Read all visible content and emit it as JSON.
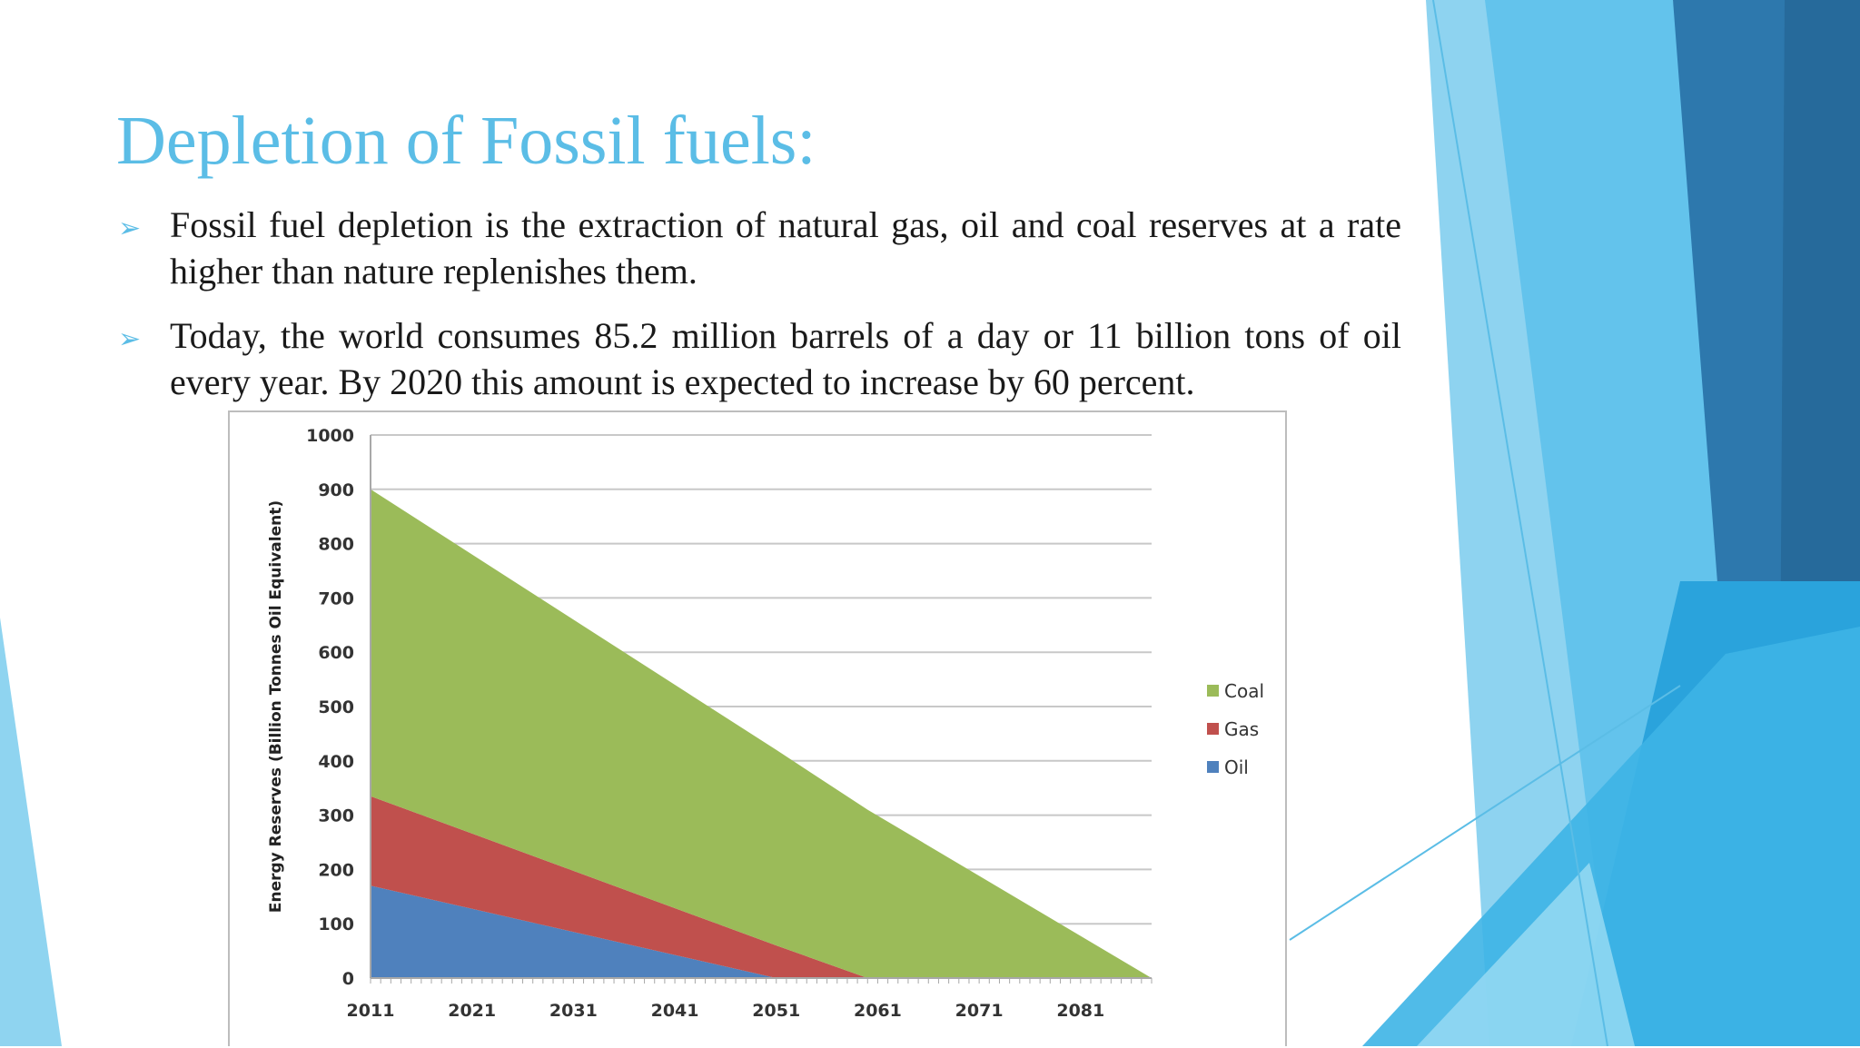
{
  "slide": {
    "title": "Depletion of Fossil fuels:",
    "bullets": [
      {
        "text": "Fossil fuel depletion is the extraction of natural gas, oil and coal reserves at a rate higher than nature replenishes them."
      },
      {
        "text": "Today, the world consumes 85.2 million barrels of a day or 11 billion tons of oil every year. By 2020 this amount is expected to increase by 60 percent."
      }
    ],
    "bullet_icon": "arrow-bullet-icon",
    "colors": {
      "accent": "#5bbde6",
      "text": "#1a1a1a"
    }
  },
  "chart_data": {
    "type": "area",
    "stacked": true,
    "ylabel": "Energy Reserves (Billion Tonnes Oil Equivalent)",
    "xlabel": "",
    "ylim": [
      0,
      1000
    ],
    "xlim": [
      2011,
      2088
    ],
    "y_ticks": [
      0,
      100,
      200,
      300,
      400,
      500,
      600,
      700,
      800,
      900,
      1000
    ],
    "x_ticks": [
      2011,
      2021,
      2031,
      2041,
      2051,
      2061,
      2071,
      2081
    ],
    "grid": true,
    "legend_position": "right",
    "series": [
      {
        "name": "Oil",
        "color": "#4f81bd",
        "points": [
          [
            2011,
            170
          ],
          [
            2051,
            0
          ]
        ]
      },
      {
        "name": "Gas",
        "color": "#c0504d",
        "points": [
          [
            2011,
            165
          ],
          [
            2051,
            60
          ],
          [
            2060,
            0
          ]
        ]
      },
      {
        "name": "Coal",
        "color": "#9bbb59",
        "points": [
          [
            2011,
            565
          ],
          [
            2051,
            360
          ],
          [
            2060,
            310
          ],
          [
            2088,
            0
          ]
        ]
      }
    ],
    "legend_order": [
      "Coal",
      "Gas",
      "Oil"
    ]
  }
}
